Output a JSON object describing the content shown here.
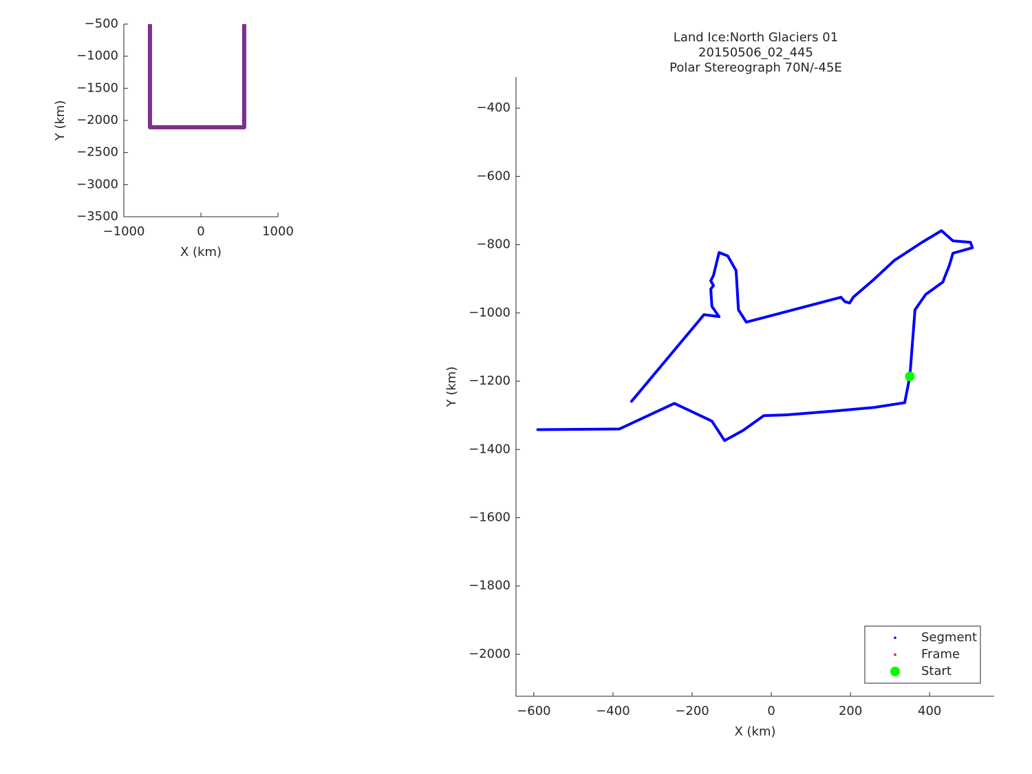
{
  "chart_data": [
    {
      "type": "line",
      "xlabel": "X (km)",
      "ylabel": "Y (km)",
      "xlim": [
        -1000,
        1000
      ],
      "xticks": [
        {
          "value": -1000,
          "label": "−1000"
        },
        0,
        1000
      ],
      "ylim": [
        -3500,
        -500
      ],
      "yticks": [
        {
          "value": -500,
          "label": "−500"
        },
        {
          "value": -1000,
          "label": "−1000"
        },
        {
          "value": -1500,
          "label": "−1500"
        },
        {
          "value": -2000,
          "label": "−2000"
        },
        {
          "value": -2500,
          "label": "−2500"
        },
        {
          "value": -3000,
          "label": "−3000"
        },
        {
          "value": -3500,
          "label": "−3500"
        }
      ],
      "series": [
        {
          "color": "#7e2f8e",
          "mode": "lines",
          "width": 6,
          "x": [
            -661,
            -661,
            562,
            562
          ],
          "values": [
            -500,
            -2107,
            -2107,
            -500
          ]
        }
      ]
    },
    {
      "type": "line",
      "title": [
        "Land Ice:North Glaciers 01",
        "20150506_02_445",
        "Polar Stereograph 70N/-45E"
      ],
      "xlabel": "X (km)",
      "ylabel": "Y (km)",
      "xlim": [
        -645,
        563
      ],
      "xticks": [
        {
          "value": -600,
          "label": "−600"
        },
        {
          "value": -400,
          "label": "−400"
        },
        {
          "value": -200,
          "label": "−200"
        },
        0,
        200,
        400
      ],
      "ylim": [
        -2123,
        -309
      ],
      "yticks": [
        {
          "value": -400,
          "label": "−400"
        },
        {
          "value": -600,
          "label": "−600"
        },
        {
          "value": -800,
          "label": "−800"
        },
        {
          "value": -1000,
          "label": "−1000"
        },
        {
          "value": -1200,
          "label": "−1200"
        },
        {
          "value": -1400,
          "label": "−1400"
        },
        {
          "value": -1600,
          "label": "−1600"
        },
        {
          "value": -1800,
          "label": "−1800"
        },
        {
          "value": -2000,
          "label": "−2000"
        }
      ],
      "legend": "lower right",
      "series": [
        {
          "name": "Segment",
          "color": "#0000ff",
          "mode": "lines",
          "width": 4,
          "x": [
            -590,
            -384,
            -245,
            -150,
            -118,
            -71,
            -19,
            33,
            163,
            259,
            337,
            350,
            363,
            390,
            433,
            450,
            459,
            508,
            503,
            459,
            430,
            381,
            311,
            259,
            207,
            198,
            186,
            176,
            -63,
            -83,
            -89,
            -110,
            -132,
            -146,
            -153,
            -146,
            -153,
            -150,
            -132,
            -170,
            -353
          ],
          "values": [
            -1342,
            -1340,
            -1265,
            -1317,
            -1374,
            -1344,
            -1301,
            -1299,
            -1287,
            -1277,
            -1263,
            -1186,
            -991,
            -946,
            -910,
            -860,
            -825,
            -809,
            -793,
            -789,
            -759,
            -793,
            -846,
            -902,
            -954,
            -971,
            -967,
            -954,
            -1027,
            -991,
            -876,
            -833,
            -823,
            -890,
            -906,
            -920,
            -930,
            -981,
            -1011,
            -1005,
            -1259
          ]
        },
        {
          "name": "Frame",
          "color": "#ff0000",
          "mode": "markers",
          "x": [],
          "values": []
        },
        {
          "name": "Start",
          "color": "#00ff00",
          "mode": "markers",
          "x": [
            350
          ],
          "values": [
            -1186
          ]
        }
      ]
    }
  ]
}
